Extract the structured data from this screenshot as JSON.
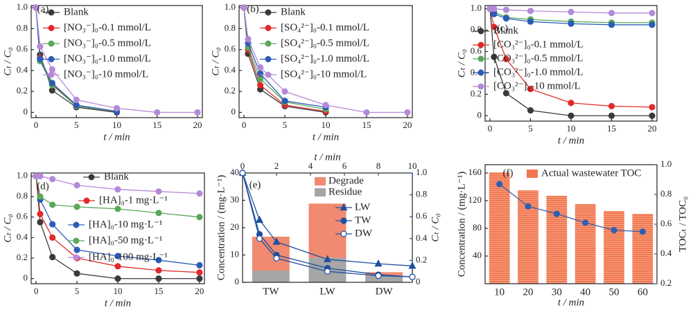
{
  "chart_data": [
    {
      "type": "line",
      "label": "(a)",
      "xlabel": "t / min",
      "ylabel": "Cₜ / C₀",
      "x": [
        0,
        0.5,
        2,
        5,
        10,
        15,
        20
      ],
      "xlim": [
        -0.6,
        20.6
      ],
      "xticks": [
        0,
        5,
        10,
        15,
        20
      ],
      "ylim": [
        -0.05,
        1.02
      ],
      "yticks": [
        0,
        0.2,
        0.4,
        0.6,
        0.8,
        {
          "value": 1,
          "label": "1.0"
        }
      ],
      "series": [
        {
          "name": "Blank",
          "color": "#3a3a3a",
          "values": [
            1,
            0.55,
            0.21,
            0.05,
            0.0,
            null,
            null
          ]
        },
        {
          "name": "[NO₃⁻]₀-0.1 mmol/L",
          "color": "#e02a2a",
          "values": [
            1,
            0.52,
            0.27,
            0.06,
            0.01,
            null,
            null
          ]
        },
        {
          "name": "[NO₃⁻]₀-0.5 mmol/L",
          "color": "#5aa85a",
          "values": [
            1,
            0.49,
            0.26,
            0.06,
            0.01,
            null,
            null
          ]
        },
        {
          "name": "[NO₃⁻]₀-1.0 mmol/L",
          "color": "#2a5cb8",
          "values": [
            1,
            0.51,
            0.28,
            0.07,
            0.01,
            null,
            null
          ]
        },
        {
          "name": "[NO₃⁻]₀-10 mmol/L",
          "color": "#b48ad8",
          "values": [
            1,
            0.63,
            0.41,
            0.12,
            0.04,
            0.0,
            0.0
          ]
        }
      ]
    },
    {
      "type": "line",
      "label": "(b)",
      "xlabel": "t / min",
      "ylabel": "Cₜ / C₀",
      "x": [
        0,
        0.5,
        2,
        5,
        10,
        15,
        20
      ],
      "xlim": [
        -0.6,
        20.6
      ],
      "xticks": [
        0,
        5,
        10,
        15,
        20
      ],
      "ylim": [
        -0.05,
        1.02
      ],
      "yticks": [
        0,
        0.2,
        0.4,
        0.6,
        0.8,
        {
          "value": 1,
          "label": "1.0"
        }
      ],
      "series": [
        {
          "name": "Blank",
          "color": "#3a3a3a",
          "values": [
            1,
            0.56,
            0.22,
            0.06,
            0.0,
            null,
            null
          ]
        },
        {
          "name": "[SO₄²⁻]₀-0.1 mmol/L",
          "color": "#e02a2a",
          "values": [
            1,
            0.6,
            0.26,
            0.07,
            0.01,
            null,
            null
          ]
        },
        {
          "name": "[SO₄²⁻]₀-0.5 mmol/L",
          "color": "#5aa85a",
          "values": [
            1,
            0.62,
            0.32,
            0.1,
            0.03,
            null,
            null
          ]
        },
        {
          "name": "[SO₄²⁻]₀-1.0 mmol/L",
          "color": "#2a5cb8",
          "values": [
            1,
            0.66,
            0.37,
            0.11,
            0.05,
            null,
            null
          ]
        },
        {
          "name": "[SO₄²⁻]₀-10 mmol/L",
          "color": "#b48ad8",
          "values": [
            1,
            0.7,
            0.43,
            0.2,
            0.07,
            0.0,
            0.0
          ]
        }
      ]
    },
    {
      "type": "line",
      "label": "(c)",
      "xlabel": "t / min",
      "ylabel": "Cₜ / C₀",
      "x": [
        0,
        0.5,
        2,
        5,
        10,
        15,
        20
      ],
      "xlim": [
        -0.6,
        20.6
      ],
      "xticks": [
        0,
        5,
        10,
        15,
        20
      ],
      "ylim": [
        -0.05,
        1.03
      ],
      "yticks": [
        0,
        0.2,
        0.4,
        0.6,
        0.8,
        {
          "value": 1,
          "label": "1.0"
        }
      ],
      "series": [
        {
          "name": "Blank",
          "color": "#3a3a3a",
          "values": [
            1,
            0.55,
            0.21,
            0.05,
            0.0,
            0.0,
            0.0
          ]
        },
        {
          "name": "[CO₃²⁻]₀-0.1 mmol/L",
          "color": "#e02a2a",
          "values": [
            1,
            0.83,
            0.53,
            0.25,
            0.12,
            0.09,
            0.08
          ]
        },
        {
          "name": "[CO₃²⁻]₀-0.5 mmol/L",
          "color": "#5aa85a",
          "values": [
            1,
            0.97,
            0.92,
            0.9,
            0.88,
            0.87,
            0.87
          ]
        },
        {
          "name": "[CO₃²⁻]₀-1.0 mmol/L",
          "color": "#2a5cb8",
          "values": [
            1,
            0.95,
            0.91,
            0.88,
            0.86,
            0.85,
            0.85
          ]
        },
        {
          "name": "[CO₃²⁻]₀-10 mmol/L",
          "color": "#b48ad8",
          "values": [
            1,
            1.0,
            0.99,
            0.98,
            0.97,
            0.96,
            0.96
          ]
        }
      ]
    },
    {
      "type": "line",
      "label": "(d)",
      "xlabel": "t / min",
      "ylabel": "Cₜ / C₀",
      "x": [
        0,
        0.5,
        2,
        5,
        10,
        15,
        20
      ],
      "xlim": [
        -0.6,
        20.6
      ],
      "xticks": [
        0,
        5,
        10,
        15,
        20
      ],
      "ylim": [
        -0.05,
        1.03
      ],
      "yticks": [
        0,
        0.2,
        0.4,
        0.6,
        0.8,
        {
          "value": 1,
          "label": "1.0"
        }
      ],
      "series": [
        {
          "name": "Blank",
          "color": "#3a3a3a",
          "values": [
            1,
            0.55,
            0.21,
            0.05,
            0.0,
            0.0,
            0.0
          ]
        },
        {
          "name": "[HA]₀-1 mg·L⁻¹",
          "color": "#e02a2a",
          "values": [
            1,
            0.63,
            0.4,
            0.2,
            0.12,
            0.08,
            0.06
          ]
        },
        {
          "name": "[HA]₀-10 mg·L⁻¹",
          "color": "#2a5cb8",
          "values": [
            1,
            0.77,
            0.53,
            0.28,
            0.22,
            0.18,
            0.13
          ]
        },
        {
          "name": "[HA]₀-50 mg·L⁻¹",
          "color": "#5aa85a",
          "values": [
            1,
            0.8,
            0.72,
            0.7,
            0.68,
            0.64,
            0.6
          ]
        },
        {
          "name": "[HA]₀-100 mg·L⁻¹",
          "color": "#b48ad8",
          "values": [
            1,
            1.0,
            0.97,
            0.91,
            0.87,
            0.85,
            0.83
          ]
        }
      ]
    },
    {
      "type": "stacked",
      "label": "(e)",
      "ylabel": "Concentration / (mg·L⁻¹)",
      "y2label": "Cₜ / C₀",
      "x2label": "t / min",
      "categories": [
        "TW",
        "LW",
        "DW"
      ],
      "ylim": [
        0,
        40
      ],
      "yticks": [
        0,
        10,
        20,
        30,
        40
      ],
      "bars": [
        {
          "name": "Residue",
          "color": "#a6a6a6",
          "values": [
            4.3,
            9,
            2.5
          ]
        },
        {
          "name": "Degrade",
          "color": "#f08a70",
          "values": [
            12.4,
            19.8,
            1.2
          ]
        }
      ],
      "x": [
        0,
        1,
        2,
        5,
        8,
        10
      ],
      "xlim": [
        0,
        10
      ],
      "xticks": [
        0,
        2,
        4,
        6,
        8,
        10
      ],
      "y2lim": [
        0,
        1.0
      ],
      "y2ticks": [
        0,
        0.2,
        0.4,
        0.6,
        0.8,
        {
          "value": 1,
          "label": "1.0"
        }
      ],
      "series": [
        {
          "name": "LW",
          "color": "#1f4fa0",
          "marker": "triangle",
          "axis": "y2",
          "values": [
            1.0,
            0.57,
            0.37,
            0.21,
            0.17,
            0.15
          ]
        },
        {
          "name": "TW",
          "color": "#1f4fa0",
          "marker": "circle",
          "axis": "y2",
          "values": [
            1.0,
            0.44,
            0.25,
            0.13,
            0.07,
            0.05
          ]
        },
        {
          "name": "DW",
          "color": "#1f4fa0",
          "marker": "open-circle",
          "axis": "y2",
          "values": [
            1.0,
            0.4,
            0.22,
            0.1,
            0.06,
            0.05
          ]
        }
      ]
    },
    {
      "type": "combo",
      "label": "(f)",
      "xlabel": "t / min",
      "ylabel": "Concentration / (mg·L⁻¹)",
      "y2label": "TOCₜ / TOC₀",
      "categories": [
        "10",
        "20",
        "30",
        "40",
        "50",
        "60"
      ],
      "ylim": [
        0,
        172
      ],
      "yticks": [
        40,
        80,
        120,
        160
      ],
      "bars": [
        {
          "name": "Actual wastewater TOC",
          "color": "#f07850",
          "values": [
            161,
            135,
            127,
            115,
            105,
            101
          ]
        }
      ],
      "y2lim": [
        0.2,
        1.0
      ],
      "y2ticks": [
        0.2,
        0.4,
        0.6,
        0.8,
        {
          "value": 1,
          "label": "1.0"
        }
      ],
      "series": [
        {
          "color": "#2f5fb0",
          "axis": "y2",
          "values": [
            0.87,
            0.72,
            0.67,
            0.61,
            0.56,
            0.55
          ]
        }
      ]
    }
  ]
}
